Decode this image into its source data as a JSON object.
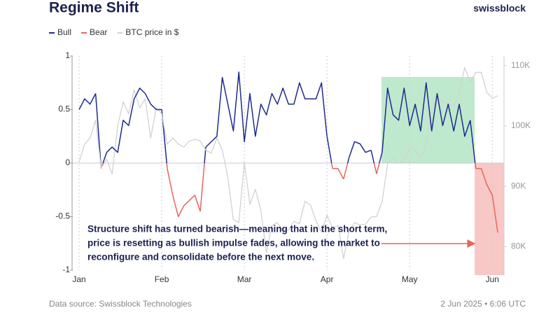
{
  "chart_data": {
    "type": "line",
    "title": "Regime Shift",
    "brand": "swissblock",
    "source": "Data source: Swissblock Technologies",
    "timestamp": "2 Jun 2025 • 6:06 UTC",
    "annotation": [
      "Structure shift has turned bearish—meaning that in the short term,",
      "price is resetting as bullish impulse fades, allowing the market to",
      "reconfigure and consolidate before the next move."
    ],
    "categories": [
      "Jan",
      null,
      null,
      null,
      null,
      null,
      null,
      null,
      null,
      null,
      null,
      null,
      null,
      null,
      null,
      "Feb",
      null,
      null,
      null,
      null,
      null,
      null,
      null,
      null,
      null,
      null,
      null,
      null,
      null,
      null,
      "Mar",
      null,
      null,
      null,
      null,
      null,
      null,
      null,
      null,
      null,
      null,
      null,
      null,
      null,
      null,
      "Apr",
      null,
      null,
      null,
      null,
      null,
      null,
      null,
      null,
      null,
      null,
      null,
      null,
      null,
      null,
      "May",
      null,
      null,
      null,
      null,
      null,
      null,
      null,
      null,
      null,
      null,
      null,
      null,
      null,
      null,
      "Jun",
      null
    ],
    "ylim": [
      -1,
      1
    ],
    "yticks": [
      -1,
      -0.5,
      0,
      0.5,
      1
    ],
    "y2lim": [
      76100,
      111600
    ],
    "y2ticks": [
      {
        "value": 80000,
        "label": "80K"
      },
      {
        "value": 90000,
        "label": "90K"
      },
      {
        "value": 100000,
        "label": "100K"
      },
      {
        "value": 110000,
        "label": "110K"
      }
    ],
    "series": [
      {
        "name": "Bull",
        "color": "#1f2a8f",
        "values": [
          0.5,
          0.6,
          0.55,
          0.65,
          null,
          0.1,
          0.15,
          0.1,
          0.4,
          0.35,
          0.6,
          0.7,
          0.65,
          0.55,
          0.5,
          0.5,
          null,
          null,
          null,
          null,
          null,
          null,
          null,
          0.15,
          0.2,
          0.25,
          0.8,
          0.55,
          0.3,
          0.85,
          0.2,
          0.65,
          0.25,
          0.55,
          0.45,
          0.65,
          0.55,
          0.7,
          0.55,
          0.55,
          0.75,
          0.6,
          0.6,
          0.6,
          0.75,
          0.25,
          null,
          null,
          null,
          0.05,
          0.2,
          0.18,
          0.1,
          0.12,
          null,
          0.1,
          0.7,
          0.45,
          0.4,
          0.7,
          0.35,
          0.55,
          0.3,
          0.75,
          0.3,
          0.65,
          0.35,
          0.55,
          0.3,
          0.55,
          0.25,
          0.4,
          null,
          null,
          null,
          null,
          null
        ]
      },
      {
        "name": "Bear",
        "color": "#e8645c",
        "values": [
          null,
          null,
          null,
          null,
          -0.05,
          null,
          null,
          null,
          null,
          null,
          null,
          null,
          null,
          null,
          null,
          null,
          -0.05,
          -0.3,
          -0.5,
          -0.4,
          -0.35,
          -0.3,
          -0.45,
          null,
          null,
          null,
          null,
          null,
          null,
          null,
          null,
          null,
          null,
          null,
          null,
          null,
          null,
          null,
          null,
          null,
          null,
          null,
          null,
          null,
          null,
          null,
          -0.05,
          -0.05,
          -0.15,
          null,
          null,
          null,
          null,
          null,
          -0.1,
          null,
          null,
          null,
          null,
          null,
          null,
          null,
          null,
          null,
          null,
          null,
          null,
          null,
          null,
          null,
          null,
          null,
          -0.05,
          -0.05,
          -0.2,
          -0.3,
          -0.65
        ]
      },
      {
        "name": "BTC price in $",
        "color": "#d2d2d7",
        "axis": "y2",
        "values": [
          94000,
          97000,
          98000,
          101000,
          93000,
          94500,
          92000,
          100000,
          104000,
          102000,
          106000,
          103000,
          104500,
          98000,
          103000,
          102000,
          97000,
          98000,
          97000,
          96500,
          97500,
          97800,
          97500,
          96000,
          95500,
          98000,
          96000,
          91500,
          84500,
          84000,
          94000,
          87000,
          89500,
          86000,
          79000,
          83500,
          84000,
          82600,
          82800,
          84200,
          83800,
          87500,
          86900,
          84300,
          82400,
          85200,
          83100,
          83500,
          78000,
          82500,
          84000,
          83600,
          83700,
          84900,
          85000,
          87500,
          93700,
          94700,
          93800,
          94300,
          96500,
          96000,
          94700,
          96800,
          102900,
          104600,
          104100,
          103700,
          103200,
          105600,
          109700,
          107300,
          108900,
          108900,
          105600,
          104600,
          105000
        ]
      }
    ]
  }
}
